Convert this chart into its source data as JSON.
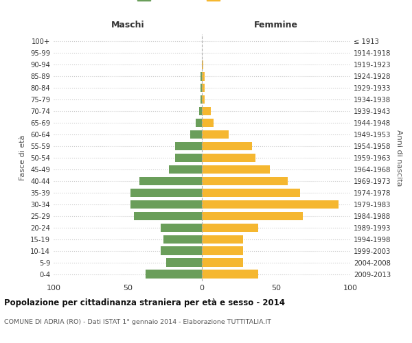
{
  "age_groups": [
    "0-4",
    "5-9",
    "10-14",
    "15-19",
    "20-24",
    "25-29",
    "30-34",
    "35-39",
    "40-44",
    "45-49",
    "50-54",
    "55-59",
    "60-64",
    "65-69",
    "70-74",
    "75-79",
    "80-84",
    "85-89",
    "90-94",
    "95-99",
    "100+"
  ],
  "birth_years": [
    "2009-2013",
    "2004-2008",
    "1999-2003",
    "1994-1998",
    "1989-1993",
    "1984-1988",
    "1979-1983",
    "1974-1978",
    "1969-1973",
    "1964-1968",
    "1959-1963",
    "1954-1958",
    "1949-1953",
    "1944-1948",
    "1939-1943",
    "1934-1938",
    "1929-1933",
    "1924-1928",
    "1919-1923",
    "1914-1918",
    "≤ 1913"
  ],
  "maschi": [
    38,
    24,
    28,
    26,
    28,
    46,
    48,
    48,
    42,
    22,
    18,
    18,
    8,
    4,
    2,
    1,
    1,
    1,
    0,
    0,
    0
  ],
  "femmine": [
    38,
    28,
    28,
    28,
    38,
    68,
    92,
    66,
    58,
    46,
    36,
    34,
    18,
    8,
    6,
    2,
    2,
    2,
    1,
    0,
    0
  ],
  "color_maschi": "#6a9e5a",
  "color_femmine": "#f5b730",
  "title": "Popolazione per cittadinanza straniera per età e sesso - 2014",
  "subtitle": "COMUNE DI ADRIA (RO) - Dati ISTAT 1° gennaio 2014 - Elaborazione TUTTITALIA.IT",
  "xlabel_left": "Maschi",
  "xlabel_right": "Femmine",
  "ylabel_left": "Fasce di età",
  "ylabel_right": "Anni di nascita",
  "xlim": 100,
  "bg_color": "#ffffff",
  "grid_color": "#cccccc",
  "bar_height": 0.75
}
